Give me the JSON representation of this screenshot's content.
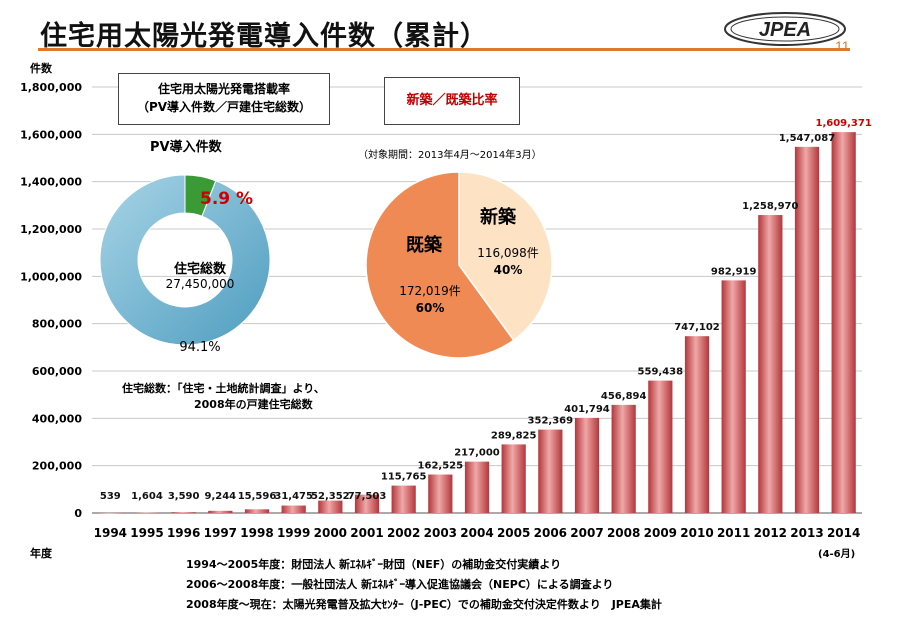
{
  "title": "住宅用太陽光発電導入件数（累計）",
  "logo_text": "JPEA",
  "page_number": "11",
  "colors": {
    "bar": "#c8494c",
    "accent": "#e07a2a",
    "donut_main": "#6fb4d2",
    "donut_pv": "#3a9a35",
    "pie_existing": "#f08a55",
    "pie_new": "#fde2c4",
    "highlight": "#d00000"
  },
  "chart_data": [
    {
      "type": "bar",
      "yunit": "件数",
      "xunit": "年度",
      "ylim": [
        0,
        1800000
      ],
      "yticks": [
        "0",
        "200,000",
        "400,000",
        "600,000",
        "800,000",
        "1,000,000",
        "1,200,000",
        "1,400,000",
        "1,600,000",
        "1,800,000"
      ],
      "categories": [
        "1994",
        "1995",
        "1996",
        "1997",
        "1998",
        "1999",
        "2000",
        "2001",
        "2002",
        "2003",
        "2004",
        "2005",
        "2006",
        "2007",
        "2008",
        "2009",
        "2010",
        "2011",
        "2012",
        "2013",
        "2014"
      ],
      "category_note": "(4-6月)",
      "values": [
        539,
        1604,
        3590,
        9244,
        15596,
        31475,
        52352,
        77503,
        115765,
        162525,
        217000,
        289825,
        352369,
        401794,
        456894,
        559438,
        747102,
        982919,
        1258970,
        1547087,
        1609371
      ],
      "labels": [
        "539",
        "1,604",
        "3,590",
        "9,244",
        "15,596",
        "31,475",
        "52,352",
        "77,503",
        "115,765",
        "162,525",
        "217,000",
        "289,825",
        "352,369",
        "401,794",
        "456,894",
        "559,438",
        "747,102",
        "982,919",
        "1,258,970",
        "1,547,087",
        "1,609,371"
      ],
      "grid": true
    },
    {
      "type": "pie",
      "title": "住宅用太陽光発電搭載率",
      "subtitle": "（PV導入件数／戸建住宅総数）",
      "slice_label": "PV導入件数",
      "center_label": "住宅総数",
      "center_value": "27,450,000",
      "slices": [
        {
          "label": "PV導入件数",
          "value": 5.9,
          "display": "5.9 %"
        },
        {
          "label": "住宅総数",
          "value": 94.1,
          "display": "94.1%"
        }
      ]
    },
    {
      "type": "pie",
      "title": "新築／既築比率",
      "period": "（対象期間：2013年4月～2014年3月）",
      "slices": [
        {
          "label": "新築",
          "value": 40,
          "count": "116,098件",
          "pct": "40%"
        },
        {
          "label": "既築",
          "value": 60,
          "count": "172,019件",
          "pct": "60%"
        }
      ]
    }
  ],
  "source_note": {
    "line1": "住宅総数：「住宅・土地統計調査」より、",
    "line2": "2008年の戸建住宅総数"
  },
  "footnotes": [
    "1994～2005年度：財団法人 新ｴﾈﾙｷﾞｰ財団（NEF）の補助金交付実績より",
    "2006～2008年度：一般社団法人 新ｴﾈﾙｷﾞｰ導入促進協議会（NEPC）による調査より",
    "2008年度～現在：太陽光発電普及拡大ｾﾝﾀｰ（J-PEC）での補助金交付決定件数より　JPEA集計"
  ]
}
